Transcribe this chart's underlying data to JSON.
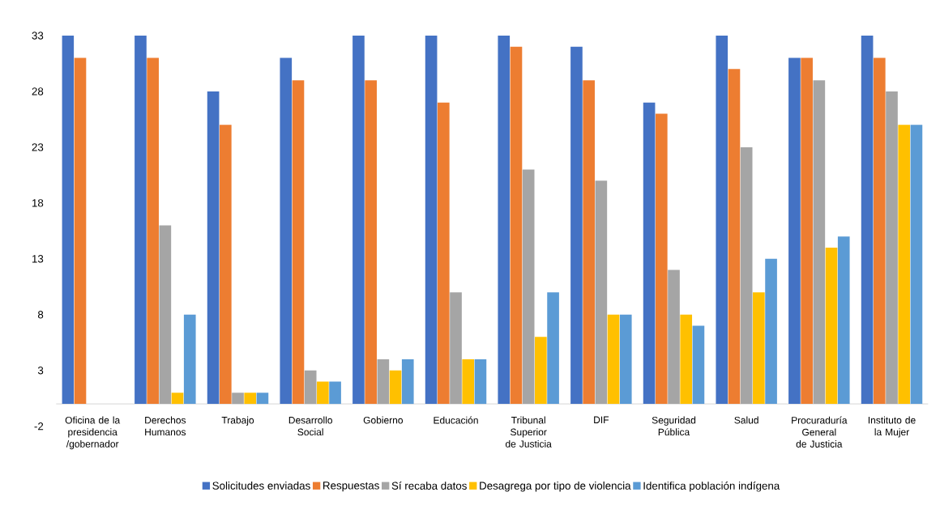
{
  "chart_data": {
    "type": "bar",
    "categories": [
      "Oficina de la presidencia /gobernador",
      "Derechos Humanos",
      "Trabajo",
      "Desarrollo Social",
      "Gobierno",
      "Educación",
      "Tribunal Superior de Justicia",
      "DIF",
      "Seguridad Pública",
      "Salud",
      "Procuraduría General de Justicia",
      "Instituto de la Mujer"
    ],
    "series": [
      {
        "name": "Solicitudes enviadas",
        "color": "#4472c4",
        "values": [
          33,
          33,
          28,
          31,
          33,
          33,
          33,
          32,
          27,
          33,
          31,
          33
        ]
      },
      {
        "name": "Respuestas",
        "color": "#ed7d31",
        "values": [
          31,
          31,
          25,
          29,
          29,
          27,
          32,
          29,
          26,
          30,
          31,
          31
        ]
      },
      {
        "name": "Sí recaba datos",
        "color": "#a5a5a5",
        "values": [
          0,
          16,
          1,
          3,
          4,
          10,
          21,
          20,
          12,
          23,
          29,
          28
        ]
      },
      {
        "name": "Desagrega por tipo de violencia",
        "color": "#ffc000",
        "values": [
          0,
          1,
          1,
          2,
          3,
          4,
          6,
          8,
          8,
          10,
          14,
          25
        ]
      },
      {
        "name": "Identifica población indígena",
        "color": "#5b9bd5",
        "values": [
          0,
          8,
          1,
          2,
          4,
          4,
          10,
          8,
          7,
          13,
          15,
          25
        ]
      }
    ],
    "ylim": [
      -2,
      33
    ],
    "yticks": [
      -2,
      3,
      8,
      13,
      18,
      23,
      28,
      33
    ],
    "legend": "bottom"
  }
}
